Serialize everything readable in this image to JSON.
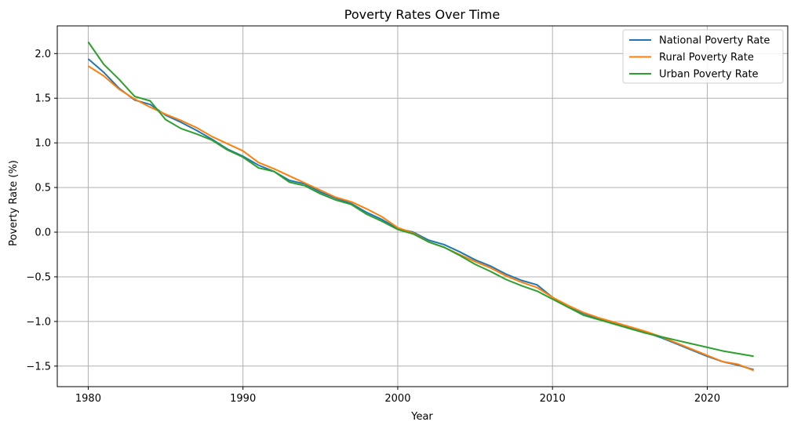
{
  "chart_data": {
    "type": "line",
    "title": "Poverty Rates Over Time",
    "xlabel": "Year",
    "ylabel": "Poverty Rate (%)",
    "xlim": [
      1978,
      2025.2
    ],
    "ylim": [
      -1.73,
      2.31
    ],
    "xticks": [
      1980,
      1990,
      2000,
      2010,
      2020
    ],
    "xtick_labels": [
      "1980",
      "1990",
      "2000",
      "2010",
      "2020"
    ],
    "yticks": [
      -1.5,
      -1.0,
      -0.5,
      0.0,
      0.5,
      1.0,
      1.5,
      2.0
    ],
    "ytick_labels": [
      "−1.5",
      "−1.0",
      "−0.5",
      "0.0",
      "0.5",
      "1.0",
      "1.5",
      "2.0"
    ],
    "grid": true,
    "legend_position": "top-right",
    "x": [
      1980,
      1981,
      1982,
      1983,
      1984,
      1985,
      1986,
      1987,
      1988,
      1989,
      1990,
      1991,
      1992,
      1993,
      1994,
      1995,
      1996,
      1997,
      1998,
      1999,
      2000,
      2001,
      2002,
      2003,
      2004,
      2005,
      2006,
      2007,
      2008,
      2009,
      2010,
      2011,
      2012,
      2013,
      2014,
      2015,
      2016,
      2017,
      2018,
      2019,
      2020,
      2021,
      2022,
      2023
    ],
    "series": [
      {
        "name": "National Poverty Rate",
        "color": "#1f77b4",
        "values": [
          1.94,
          1.79,
          1.61,
          1.48,
          1.43,
          1.31,
          1.23,
          1.14,
          1.04,
          0.93,
          0.85,
          0.75,
          0.68,
          0.58,
          0.54,
          0.45,
          0.38,
          0.32,
          0.22,
          0.14,
          0.04,
          0.0,
          -0.09,
          -0.14,
          -0.22,
          -0.31,
          -0.38,
          -0.47,
          -0.54,
          -0.59,
          -0.73,
          -0.84,
          -0.91,
          -0.97,
          -1.02,
          -1.07,
          -1.12,
          -1.18,
          -1.25,
          -1.32,
          -1.39,
          -1.45,
          -1.49,
          -1.54
        ]
      },
      {
        "name": "Rural Poverty Rate",
        "color": "#ff7f0e",
        "values": [
          1.86,
          1.75,
          1.6,
          1.49,
          1.4,
          1.32,
          1.25,
          1.17,
          1.07,
          0.99,
          0.91,
          0.78,
          0.71,
          0.63,
          0.55,
          0.47,
          0.39,
          0.34,
          0.26,
          0.17,
          0.05,
          -0.01,
          -0.11,
          -0.17,
          -0.25,
          -0.33,
          -0.4,
          -0.49,
          -0.56,
          -0.62,
          -0.73,
          -0.82,
          -0.9,
          -0.96,
          -1.01,
          -1.06,
          -1.11,
          -1.17,
          -1.24,
          -1.31,
          -1.38,
          -1.45,
          -1.48,
          -1.55
        ]
      },
      {
        "name": "Urban Poverty Rate",
        "color": "#2ca02c",
        "values": [
          2.13,
          1.88,
          1.71,
          1.52,
          1.47,
          1.26,
          1.16,
          1.1,
          1.03,
          0.92,
          0.84,
          0.72,
          0.68,
          0.56,
          0.52,
          0.43,
          0.36,
          0.31,
          0.2,
          0.12,
          0.03,
          -0.02,
          -0.11,
          -0.17,
          -0.26,
          -0.36,
          -0.44,
          -0.53,
          -0.6,
          -0.66,
          -0.75,
          -0.84,
          -0.93,
          -0.98,
          -1.03,
          -1.08,
          -1.13,
          -1.17,
          -1.21,
          -1.25,
          -1.29,
          -1.33,
          -1.36,
          -1.39
        ]
      }
    ]
  }
}
